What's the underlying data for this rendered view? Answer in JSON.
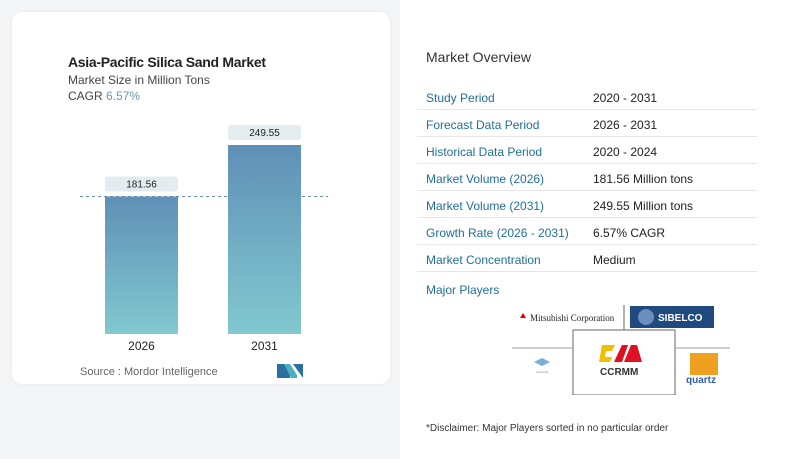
{
  "chart_data": {
    "type": "bar",
    "title": "Asia-Pacific Silica Sand Market",
    "subtitle": "Market Size in Million Tons",
    "cagr_label": "CAGR",
    "cagr_value": "6.57%",
    "categories": [
      "2026",
      "2031"
    ],
    "values": [
      181.56,
      249.55
    ],
    "value_labels": [
      "181.56",
      "249.55"
    ],
    "ylim": [
      0,
      260
    ],
    "reference_line": 181.56,
    "colors": {
      "bar_top": "#5f90b7",
      "bar_bottom": "#82c8cf"
    }
  },
  "source": "Source :  Mordor Intelligence",
  "overview": {
    "title": "Market Overview",
    "rows": [
      {
        "k": "Study Period",
        "v": "2020 - 2031"
      },
      {
        "k": "Forecast Data Period",
        "v": "2026 - 2031"
      },
      {
        "k": "Historical Data Period",
        "v": "2020 - 2024"
      },
      {
        "k": "Market Volume (2026)",
        "v": "181.56 Million tons"
      },
      {
        "k": "Market Volume (2031)",
        "v": "249.55 Million tons"
      },
      {
        "k": "Growth Rate (2026 - 2031)",
        "v": "6.57% CAGR"
      },
      {
        "k": "Market Concentration",
        "v": "Medium"
      }
    ],
    "major_players_label": "Major Players",
    "players": [
      "Mitsubishi Corporation",
      "SIBELCO",
      "CCRMM",
      "quartz",
      "vitrosuds"
    ],
    "disclaimer": "*Disclaimer: Major Players sorted in no particular order"
  }
}
